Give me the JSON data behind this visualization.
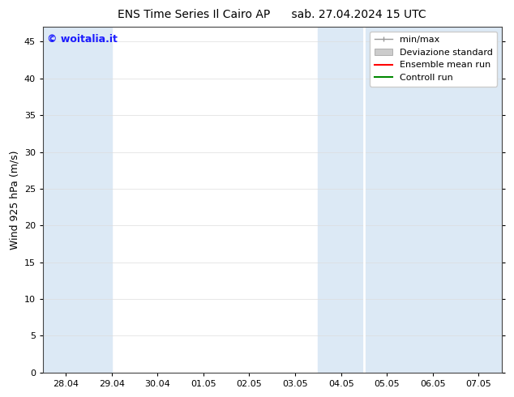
{
  "title_left": "ENS Time Series Il Cairo AP",
  "title_right": "sab. 27.04.2024 15 UTC",
  "ylabel": "Wind 925 hPa (m/s)",
  "watermark": "© woitalia.it",
  "watermark_color": "#1a1aff",
  "ylim": [
    0,
    47
  ],
  "yticks": [
    0,
    5,
    10,
    15,
    20,
    25,
    30,
    35,
    40,
    45
  ],
  "background_color": "#ffffff",
  "plot_bg_color": "#ffffff",
  "shaded_band_color": "#dce9f5",
  "legend_entries": [
    "min/max",
    "Deviazione standard",
    "Ensemble mean run",
    "Controll run"
  ],
  "legend_colors_line": [
    "#999999",
    "#bbbbbb",
    "#ff0000",
    "#008800"
  ],
  "x_tick_labels": [
    "28.04",
    "29.04",
    "30.04",
    "01.05",
    "02.05",
    "03.05",
    "04.05",
    "05.05",
    "06.05",
    "07.05"
  ],
  "x_tick_positions": [
    0,
    1,
    2,
    3,
    4,
    5,
    6,
    7,
    8,
    9
  ],
  "xlim": [
    -0.5,
    9.5
  ],
  "shaded_regions": [
    [
      0.0,
      1.0
    ],
    [
      6.0,
      7.0
    ],
    [
      7.0,
      8.0
    ],
    [
      8.0,
      9.5
    ]
  ],
  "font_size_title": 10,
  "font_size_labels": 9,
  "font_size_ticks": 8,
  "font_size_legend": 8,
  "font_size_watermark": 9
}
